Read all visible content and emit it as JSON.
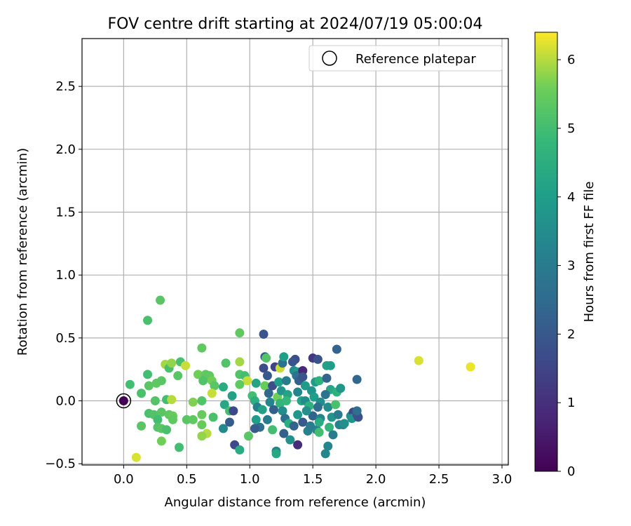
{
  "chart_data": {
    "type": "scatter",
    "title": "FOV centre drift starting at 2024/07/19 05:00:04",
    "xlabel": "Angular distance from reference (arcmin)",
    "ylabel": "Rotation from reference (arcmin)",
    "xlim": [
      -0.33,
      3.05
    ],
    "ylim": [
      -0.51,
      2.88
    ],
    "xticks": [
      0.0,
      0.5,
      1.0,
      1.5,
      2.0,
      2.5,
      3.0
    ],
    "xtick_labels": [
      "0.0",
      "0.5",
      "1.0",
      "1.5",
      "2.0",
      "2.5",
      "3.0"
    ],
    "yticks": [
      -0.5,
      0.0,
      0.5,
      1.0,
      1.5,
      2.0,
      2.5
    ],
    "ytick_labels": [
      "−0.5",
      "0.0",
      "0.5",
      "1.0",
      "1.5",
      "2.0",
      "2.5"
    ],
    "grid": true,
    "legend": {
      "placement": "top-right",
      "label": "Reference platepar"
    },
    "colorbar": {
      "label": "Hours from first FF file",
      "colormap": "viridis",
      "range": [
        0,
        6.4
      ],
      "ticks": [
        0,
        1,
        2,
        3,
        4,
        5,
        6
      ],
      "tick_labels": [
        "0",
        "1",
        "2",
        "3",
        "4",
        "5",
        "6"
      ]
    },
    "reference_point": {
      "x": 0.0,
      "y": 0.0,
      "hours": 0.0
    },
    "points": [
      [
        0.0,
        0.0,
        0.0
      ],
      [
        0.29,
        0.8,
        5.3
      ],
      [
        0.19,
        0.64,
        5.1
      ],
      [
        0.1,
        -0.45,
        6.2
      ],
      [
        0.05,
        0.13,
        5.0
      ],
      [
        0.14,
        0.06,
        5.1
      ],
      [
        0.19,
        0.21,
        5.0
      ],
      [
        0.2,
        0.12,
        5.3
      ],
      [
        0.25,
        0.0,
        5.2
      ],
      [
        0.26,
        0.14,
        5.4
      ],
      [
        0.3,
        0.16,
        5.3
      ],
      [
        0.33,
        0.29,
        5.9
      ],
      [
        0.36,
        0.26,
        5.1
      ],
      [
        0.38,
        0.3,
        5.8
      ],
      [
        0.45,
        0.31,
        5.1
      ],
      [
        0.43,
        0.2,
        5.3
      ],
      [
        0.49,
        0.28,
        6.1
      ],
      [
        0.59,
        0.21,
        5.6
      ],
      [
        0.62,
        0.42,
        5.4
      ],
      [
        0.65,
        0.21,
        5.4
      ],
      [
        0.68,
        0.2,
        5.4
      ],
      [
        0.63,
        0.16,
        5.2
      ],
      [
        0.7,
        0.16,
        5.6
      ],
      [
        0.72,
        0.12,
        5.3
      ],
      [
        0.7,
        0.06,
        6.1
      ],
      [
        0.55,
        -0.01,
        5.7
      ],
      [
        0.62,
        0.0,
        5.2
      ],
      [
        0.34,
        0.01,
        5.0
      ],
      [
        0.38,
        0.01,
        6.0
      ],
      [
        0.2,
        -0.1,
        5.1
      ],
      [
        0.24,
        -0.11,
        5.2
      ],
      [
        0.3,
        -0.09,
        5.3
      ],
      [
        0.36,
        -0.11,
        5.4
      ],
      [
        0.39,
        -0.12,
        5.5
      ],
      [
        0.39,
        -0.15,
        5.4
      ],
      [
        0.27,
        -0.15,
        5.0
      ],
      [
        0.27,
        -0.21,
        5.2
      ],
      [
        0.3,
        -0.22,
        5.3
      ],
      [
        0.34,
        -0.23,
        5.1
      ],
      [
        0.14,
        -0.2,
        5.3
      ],
      [
        0.3,
        -0.32,
        5.6
      ],
      [
        0.44,
        -0.37,
        5.0
      ],
      [
        0.5,
        -0.15,
        5.3
      ],
      [
        0.55,
        -0.15,
        5.4
      ],
      [
        0.62,
        -0.11,
        5.5
      ],
      [
        0.62,
        -0.19,
        5.5
      ],
      [
        0.66,
        -0.26,
        6.0
      ],
      [
        0.62,
        -0.28,
        5.8
      ],
      [
        0.71,
        -0.13,
        5.1
      ],
      [
        0.81,
        0.3,
        5.2
      ],
      [
        0.79,
        0.11,
        4.4
      ],
      [
        0.86,
        0.04,
        4.1
      ],
      [
        0.8,
        -0.03,
        4.3
      ],
      [
        0.84,
        -0.08,
        5.0
      ],
      [
        0.87,
        -0.08,
        1.6
      ],
      [
        0.79,
        -0.22,
        3.4
      ],
      [
        0.84,
        -0.17,
        2.1
      ],
      [
        0.92,
        0.54,
        5.4
      ],
      [
        0.92,
        0.31,
        5.9
      ],
      [
        0.92,
        0.21,
        5.2
      ],
      [
        0.96,
        0.2,
        5.0
      ],
      [
        0.98,
        0.16,
        6.1
      ],
      [
        0.92,
        0.13,
        5.4
      ],
      [
        0.88,
        -0.35,
        1.6
      ],
      [
        0.92,
        -0.39,
        4.4
      ],
      [
        0.99,
        -0.28,
        5.3
      ],
      [
        1.02,
        0.04,
        5.0
      ],
      [
        1.05,
        0.14,
        4.2
      ],
      [
        1.04,
        0.0,
        4.5
      ],
      [
        1.06,
        -0.05,
        3.1
      ],
      [
        1.1,
        -0.07,
        4.1
      ],
      [
        1.05,
        -0.15,
        4.0
      ],
      [
        1.08,
        -0.21,
        2.6
      ],
      [
        1.04,
        -0.22,
        2.1
      ],
      [
        1.11,
        0.53,
        1.9
      ],
      [
        1.12,
        0.35,
        2.0
      ],
      [
        1.13,
        0.34,
        5.2
      ],
      [
        1.11,
        0.26,
        1.7
      ],
      [
        1.14,
        0.2,
        2.0
      ],
      [
        1.12,
        0.12,
        5.5
      ],
      [
        1.15,
        0.06,
        2.4
      ],
      [
        1.18,
        0.12,
        1.7
      ],
      [
        1.16,
        -0.01,
        3.3
      ],
      [
        1.19,
        -0.07,
        2.2
      ],
      [
        1.14,
        -0.15,
        3.0
      ],
      [
        1.18,
        -0.23,
        5.0
      ],
      [
        1.21,
        -0.4,
        3.3
      ],
      [
        1.21,
        -0.42,
        4.3
      ],
      [
        1.22,
        0.03,
        5.6
      ],
      [
        1.2,
        0.27,
        1.5
      ],
      [
        1.24,
        0.26,
        6.1
      ],
      [
        1.26,
        0.3,
        2.7
      ],
      [
        1.27,
        0.35,
        4.0
      ],
      [
        1.23,
        0.15,
        4.0
      ],
      [
        1.29,
        0.16,
        3.0
      ],
      [
        1.25,
        0.08,
        3.7
      ],
      [
        1.3,
        0.05,
        4.2
      ],
      [
        1.24,
        -0.02,
        4.7
      ],
      [
        1.29,
        0.0,
        4.8
      ],
      [
        1.26,
        -0.08,
        3.5
      ],
      [
        1.28,
        -0.14,
        2.6
      ],
      [
        1.31,
        -0.18,
        4.5
      ],
      [
        1.27,
        -0.26,
        2.2
      ],
      [
        1.32,
        -0.31,
        3.6
      ],
      [
        1.35,
        -0.2,
        2.3
      ],
      [
        1.36,
        0.33,
        1.7
      ],
      [
        1.34,
        0.31,
        1.9
      ],
      [
        1.35,
        0.24,
        3.5
      ],
      [
        1.38,
        0.23,
        3.9
      ],
      [
        1.37,
        0.2,
        2.7
      ],
      [
        1.39,
        0.16,
        2.2
      ],
      [
        1.42,
        0.24,
        0.8
      ],
      [
        1.42,
        0.19,
        1.9
      ],
      [
        1.38,
        0.07,
        3.3
      ],
      [
        1.44,
        0.12,
        3.9
      ],
      [
        1.41,
        0.0,
        4.2
      ],
      [
        1.44,
        0.0,
        3.5
      ],
      [
        1.38,
        -0.11,
        3.8
      ],
      [
        1.42,
        -0.17,
        2.0
      ],
      [
        1.46,
        -0.24,
        3.2
      ],
      [
        1.38,
        -0.35,
        0.9
      ],
      [
        1.47,
        -0.04,
        4.6
      ],
      [
        1.5,
        0.34,
        1.2
      ],
      [
        1.54,
        0.33,
        1.8
      ],
      [
        1.52,
        0.15,
        3.9
      ],
      [
        1.55,
        0.16,
        4.6
      ],
      [
        1.49,
        0.08,
        3.7
      ],
      [
        1.51,
        0.03,
        4.0
      ],
      [
        1.56,
        -0.01,
        3.5
      ],
      [
        1.54,
        -0.05,
        2.6
      ],
      [
        1.5,
        -0.12,
        2.3
      ],
      [
        1.56,
        -0.14,
        3.3
      ],
      [
        1.53,
        -0.23,
        3.3
      ],
      [
        1.55,
        -0.25,
        5.0
      ],
      [
        1.6,
        -0.42,
        3.3
      ],
      [
        1.62,
        -0.36,
        3.3
      ],
      [
        1.61,
        0.28,
        4.1
      ],
      [
        1.64,
        0.28,
        4.0
      ],
      [
        1.61,
        0.18,
        2.3
      ],
      [
        1.64,
        0.09,
        4.3
      ],
      [
        1.6,
        0.05,
        2.7
      ],
      [
        1.62,
        -0.05,
        3.5
      ],
      [
        1.65,
        -0.13,
        3.7
      ],
      [
        1.63,
        -0.21,
        4.7
      ],
      [
        1.66,
        -0.27,
        3.0
      ],
      [
        1.69,
        0.41,
        2.3
      ],
      [
        1.69,
        0.07,
        4.6
      ],
      [
        1.72,
        0.1,
        3.8
      ],
      [
        1.68,
        -0.03,
        5.1
      ],
      [
        1.7,
        -0.11,
        3.0
      ],
      [
        1.71,
        -0.19,
        3.2
      ],
      [
        1.74,
        -0.19,
        3.3
      ],
      [
        1.75,
        -0.18,
        3.6
      ],
      [
        1.8,
        -0.12,
        3.6
      ],
      [
        1.82,
        -0.09,
        1.6
      ],
      [
        1.81,
        -0.14,
        3.7
      ],
      [
        1.85,
        0.17,
        2.4
      ],
      [
        1.85,
        -0.11,
        1.9
      ],
      [
        1.86,
        -0.13,
        1.8
      ],
      [
        1.85,
        -0.08,
        2.6
      ],
      [
        2.34,
        0.32,
        6.2
      ],
      [
        2.75,
        0.27,
        6.3
      ],
      [
        1.55,
        -0.17,
        4.4
      ],
      [
        1.48,
        -0.2,
        3.0
      ],
      [
        1.45,
        -0.08,
        3.6
      ]
    ]
  }
}
